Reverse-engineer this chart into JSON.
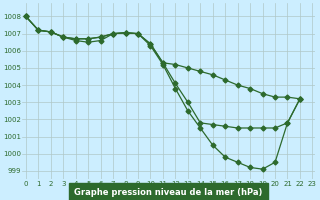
{
  "series": {
    "s1_x": [
      0,
      1,
      2,
      3,
      4,
      5,
      6,
      7,
      8,
      9,
      10,
      11,
      12,
      13,
      14,
      15,
      16,
      17,
      18,
      19,
      20,
      21,
      22
    ],
    "s1_y": [
      1008.0,
      1007.2,
      1007.1,
      1006.8,
      1006.7,
      1006.7,
      1006.8,
      1007.0,
      1007.05,
      1007.0,
      1006.4,
      1005.3,
      1005.2,
      1005.0,
      1004.8,
      1004.6,
      1004.3,
      1004.0,
      1003.8,
      1003.5,
      1003.3,
      1003.3,
      1003.2
    ],
    "s2_x": [
      0,
      1,
      2,
      3,
      4,
      5,
      6,
      7,
      8,
      9,
      10,
      11,
      12,
      13,
      14,
      15,
      16,
      17,
      18,
      19,
      20,
      21,
      22
    ],
    "s2_y": [
      1008.0,
      1007.2,
      1007.1,
      1006.8,
      1006.7,
      1006.7,
      1006.8,
      1007.0,
      1007.05,
      1007.0,
      1006.4,
      1005.3,
      1004.1,
      1003.0,
      1001.8,
      1001.7,
      1001.6,
      1001.5,
      1001.5,
      1001.5,
      1001.5,
      1001.8,
      1003.2
    ],
    "s3_x": [
      0,
      1,
      2,
      3,
      4,
      5,
      6,
      7,
      8,
      9,
      10,
      11,
      12,
      13,
      14,
      15,
      16,
      17,
      18,
      19,
      20,
      21,
      22
    ],
    "s3_y": [
      1008.0,
      1007.2,
      1007.1,
      1006.8,
      1006.6,
      1006.5,
      1006.6,
      1007.0,
      1007.05,
      1007.0,
      1006.3,
      1005.2,
      1003.8,
      1002.5,
      1001.5,
      1000.5,
      999.8,
      999.5,
      999.2,
      999.1,
      999.5,
      1001.8,
      1003.2
    ]
  },
  "ylim": [
    998.5,
    1008.8
  ],
  "xlim": [
    -0.3,
    23.2
  ],
  "yticks": [
    999,
    1000,
    1001,
    1002,
    1003,
    1004,
    1005,
    1006,
    1007,
    1008
  ],
  "xticks": [
    0,
    1,
    2,
    3,
    4,
    5,
    6,
    7,
    8,
    9,
    10,
    11,
    12,
    13,
    14,
    15,
    16,
    17,
    18,
    19,
    20,
    21,
    22,
    23
  ],
  "line_color": "#2d6a2d",
  "bg_color": "#cceeff",
  "grid_color": "#b0c8c8",
  "xlabel": "Graphe pression niveau de la mer (hPa)",
  "xlabel_bg": "#2d6a2d"
}
